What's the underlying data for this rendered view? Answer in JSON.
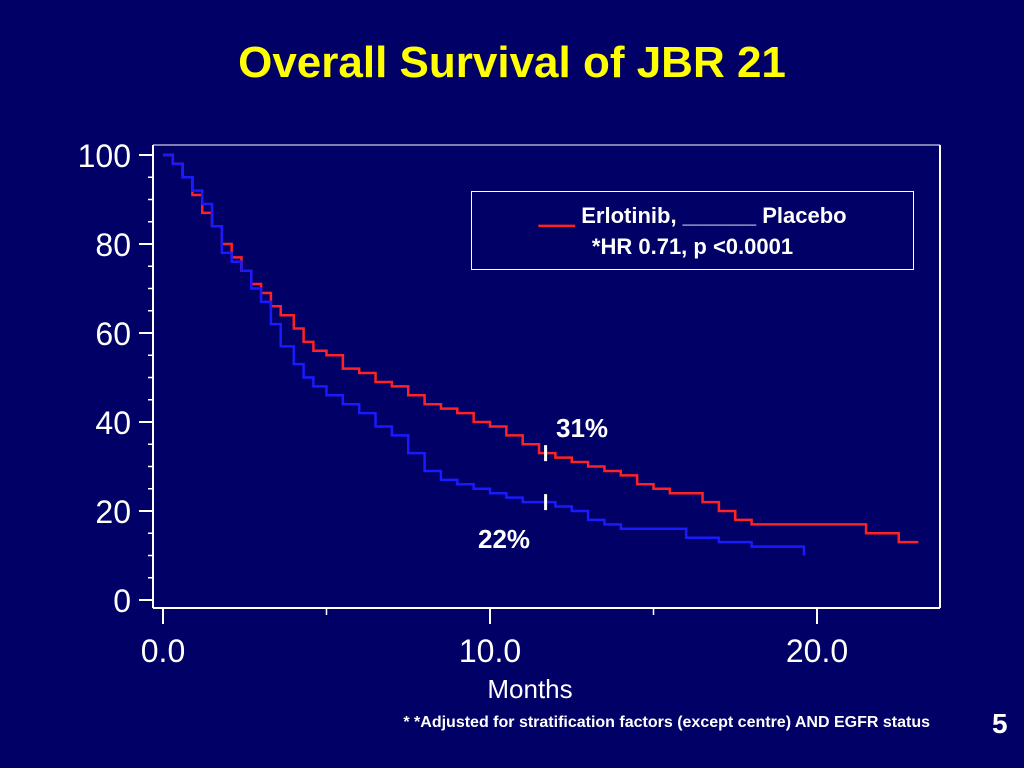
{
  "title": "Overall Survival of JBR 21",
  "legend": {
    "swatch_red": "___",
    "line1_text": " Erlotinib, ______ Placebo",
    "line2": "*HR  0.71, p <0.0001"
  },
  "xlabel": "Months",
  "footnote": "* *Adjusted for stratification factors (except centre) AND EGFR status",
  "page_number": "5",
  "annotations": {
    "erlotinib_pct": "31%",
    "placebo_pct": "22%"
  },
  "colors": {
    "background": "#000066",
    "title": "#ffff00",
    "erlotinib": "#ff2222",
    "placebo": "#1a1aff",
    "axis": "#ffffff"
  },
  "chart_data": {
    "type": "line",
    "title": "Overall Survival of JBR 21",
    "xlabel": "Months",
    "ylabel": "",
    "xlim": [
      0,
      23.5
    ],
    "ylim": [
      0,
      100
    ],
    "x_ticks": [
      "0.0",
      "10.0",
      "20.0"
    ],
    "y_ticks": [
      "0",
      "20",
      "40",
      "60",
      "80",
      "100"
    ],
    "grid": false,
    "legend_position": "top-right",
    "annotations": [
      {
        "text": "31%",
        "x": 11.7,
        "y": 33
      },
      {
        "text": "22%",
        "x": 11.7,
        "y": 22
      }
    ],
    "series": [
      {
        "name": "Erlotinib",
        "color": "#ff2222",
        "x": [
          0,
          0.3,
          0.6,
          0.9,
          1.2,
          1.5,
          1.8,
          2.1,
          2.4,
          2.7,
          3.0,
          3.3,
          3.6,
          4.0,
          4.3,
          4.6,
          5.0,
          5.5,
          6.0,
          6.5,
          7.0,
          7.5,
          8.0,
          8.5,
          9.0,
          9.5,
          10.0,
          10.5,
          11.0,
          11.5,
          12.0,
          12.5,
          13.0,
          13.5,
          14.0,
          14.5,
          15.0,
          15.5,
          16.0,
          16.5,
          17.0,
          17.5,
          18.0,
          19.0,
          20.0,
          21.0,
          21.5,
          22.0,
          22.5,
          23.1
        ],
        "y": [
          100,
          98,
          95,
          91,
          87,
          84,
          80,
          77,
          74,
          71,
          69,
          66,
          64,
          61,
          58,
          56,
          55,
          52,
          51,
          49,
          48,
          46,
          44,
          43,
          42,
          40,
          39,
          37,
          35,
          33,
          32,
          31,
          30,
          29,
          28,
          26,
          25,
          24,
          24,
          22,
          20,
          18,
          17,
          17,
          17,
          17,
          15,
          15,
          13,
          13
        ]
      },
      {
        "name": "Placebo",
        "color": "#1a1aff",
        "x": [
          0,
          0.3,
          0.6,
          0.9,
          1.2,
          1.5,
          1.8,
          2.1,
          2.4,
          2.7,
          3.0,
          3.3,
          3.6,
          4.0,
          4.3,
          4.6,
          5.0,
          5.5,
          6.0,
          6.5,
          7.0,
          7.5,
          8.0,
          8.5,
          9.0,
          9.5,
          10.0,
          10.5,
          11.0,
          11.5,
          12.0,
          12.5,
          13.0,
          13.5,
          14.0,
          14.5,
          15.0,
          16.0,
          17.0,
          18.0,
          19.0,
          19.6
        ],
        "y": [
          100,
          98,
          95,
          92,
          89,
          84,
          78,
          76,
          74,
          70,
          67,
          62,
          57,
          53,
          50,
          48,
          46,
          44,
          42,
          39,
          37,
          33,
          29,
          27,
          26,
          25,
          24,
          23,
          22,
          22,
          21,
          20,
          18,
          17,
          16,
          16,
          16,
          14,
          13,
          12,
          12,
          10
        ]
      }
    ]
  }
}
